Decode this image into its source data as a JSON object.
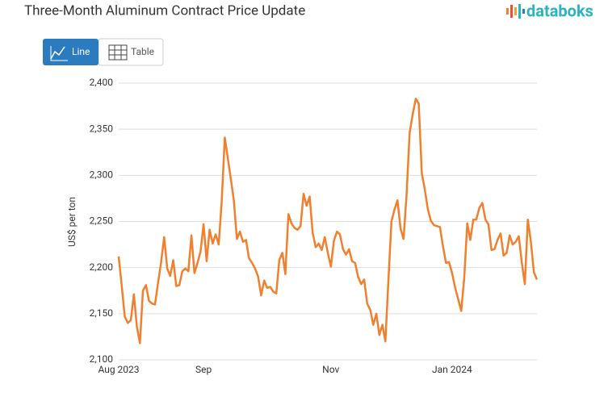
{
  "brand": "databoks",
  "buttons": [
    "Line",
    "Table"
  ],
  "chart_data": {
    "type": "line",
    "title": "Three-Month Aluminum Contract Price Update",
    "y_label": "US$ per ton",
    "categories": [
      "Aug 2023",
      null,
      null,
      null,
      null,
      null,
      null,
      null,
      null,
      null,
      null,
      null,
      null,
      null,
      null,
      null,
      null,
      null,
      null,
      null,
      null,
      null,
      null,
      null,
      null,
      null,
      null,
      null,
      "Sep",
      null,
      null,
      null,
      null,
      null,
      null,
      null,
      null,
      null,
      null,
      null,
      null,
      null,
      null,
      null,
      null,
      null,
      null,
      null,
      null,
      null,
      null,
      null,
      null,
      null,
      null,
      null,
      null,
      null,
      null,
      null,
      null,
      null,
      null,
      null,
      null,
      null,
      null,
      null,
      null,
      null,
      "Nov",
      null,
      null,
      null,
      null,
      null,
      null,
      null,
      null,
      null,
      null,
      null,
      null,
      null,
      null,
      null,
      null,
      null,
      null,
      null,
      null,
      null,
      null,
      null,
      null,
      null,
      null,
      null,
      null,
      null,
      null,
      null,
      null,
      null,
      null,
      null,
      null,
      null,
      null,
      null,
      "Jan 2024",
      null,
      null,
      null,
      null,
      null,
      null,
      null,
      null,
      null,
      null,
      null,
      null,
      null,
      null,
      null,
      null,
      null,
      null,
      null,
      null,
      null,
      null,
      null,
      null,
      null,
      null,
      null,
      null
    ],
    "series": [
      {
        "name": "Price",
        "color": "#f07f2e",
        "values": [
          2212,
          2180,
          2147,
          2140,
          2143,
          2171,
          2136,
          2118,
          2175,
          2181,
          2164,
          2161,
          2160,
          2184,
          2206,
          2233,
          2199,
          2191,
          2208,
          2180,
          2181,
          2196,
          2199,
          2196,
          2235,
          2194,
          2205,
          2217,
          2247,
          2207,
          2241,
          2226,
          2236,
          2225,
          2272,
          2341,
          2319,
          2296,
          2273,
          2231,
          2239,
          2228,
          2230,
          2210,
          2205,
          2199,
          2190,
          2170,
          2186,
          2178,
          2179,
          2174,
          2172,
          2208,
          2216,
          2193,
          2258,
          2248,
          2243,
          2241,
          2245,
          2280,
          2267,
          2277,
          2238,
          2222,
          2226,
          2219,
          2233,
          2216,
          2201,
          2229,
          2239,
          2236,
          2220,
          2214,
          2220,
          2207,
          2205,
          2190,
          2182,
          2187,
          2161,
          2154,
          2138,
          2150,
          2127,
          2138,
          2120,
          2187,
          2250,
          2263,
          2273,
          2242,
          2231,
          2280,
          2346,
          2366,
          2383,
          2378,
          2302,
          2285,
          2263,
          2251,
          2246,
          2245,
          2244,
          2223,
          2205,
          2206,
          2194,
          2178,
          2166,
          2153,
          2188,
          2248,
          2230,
          2252,
          2252,
          2265,
          2270,
          2252,
          2247,
          2219,
          2220,
          2230,
          2237,
          2213,
          2216,
          2235,
          2225,
          2228,
          2234,
          2206,
          2182,
          2252,
          2228,
          2195,
          2187
        ]
      }
    ],
    "ylim": [
      2100,
      2400
    ],
    "yticks": [
      {
        "value": 2100,
        "label": "2,100"
      },
      {
        "value": 2150,
        "label": "2,150"
      },
      {
        "value": 2200,
        "label": "2,200"
      },
      {
        "value": 2250,
        "label": "2,250"
      },
      {
        "value": 2300,
        "label": "2,300"
      },
      {
        "value": 2350,
        "label": "2,350"
      },
      {
        "value": 2400,
        "label": "2,400"
      }
    ],
    "grid": true
  }
}
